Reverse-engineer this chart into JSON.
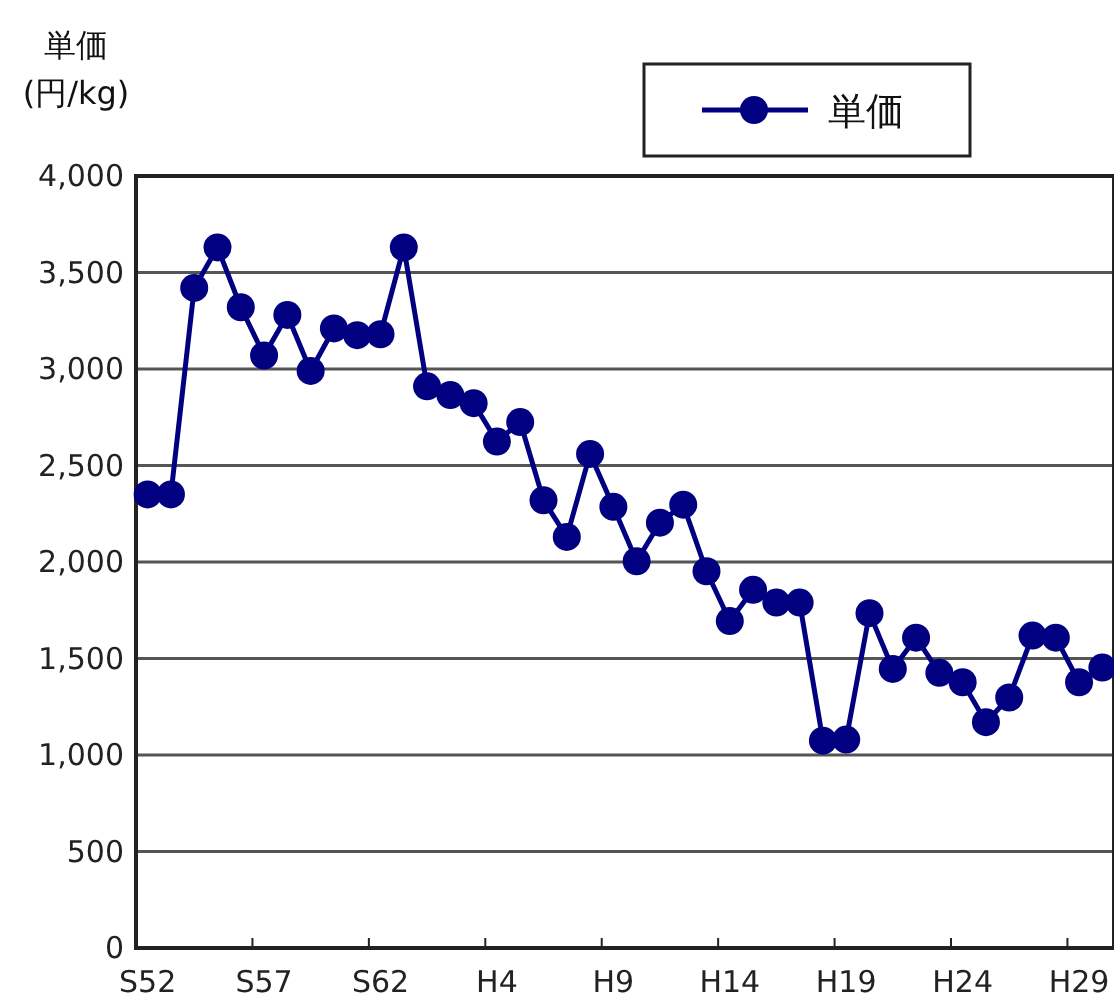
{
  "chart_data": {
    "type": "line",
    "ylabel": "単価 (円/kg)",
    "categories": [
      "S52",
      null,
      null,
      null,
      null,
      "S57",
      null,
      null,
      null,
      null,
      "S62",
      null,
      null,
      null,
      null,
      "H4",
      null,
      null,
      null,
      null,
      "H9",
      null,
      null,
      null,
      null,
      "H14",
      null,
      null,
      null,
      null,
      "H19",
      null,
      null,
      null,
      null,
      "H24",
      null,
      null,
      null,
      null,
      "H29",
      null
    ],
    "series": [
      {
        "name": "単価",
        "color": "#000080",
        "values": [
          2350,
          2350,
          3420,
          3630,
          3320,
          3070,
          3280,
          2990,
          3210,
          3175,
          3180,
          3630,
          2910,
          2865,
          2823,
          2624,
          2725,
          2320,
          2130,
          2560,
          2286,
          2004,
          2204,
          2297,
          1952,
          1694,
          1856,
          1790,
          1790,
          1074,
          1080,
          1735,
          1446,
          1608,
          1426,
          1377,
          1170,
          1298,
          1619,
          1608,
          1377,
          1453
        ]
      }
    ],
    "ylim": [
      0,
      4000
    ],
    "yticks": [
      0,
      500,
      {
        "value": 1000,
        "label": "1,000"
      },
      {
        "value": 1500,
        "label": "1,500"
      },
      {
        "value": 2000,
        "label": "2,000"
      },
      {
        "value": 2500,
        "label": "2,500"
      },
      {
        "value": 3000,
        "label": "3,000"
      },
      {
        "value": 3500,
        "label": "3,500"
      },
      {
        "value": 4000,
        "label": "4,000"
      }
    ],
    "grid": "y",
    "legend": "top",
    "marker": "circle",
    "line_style": "solid"
  }
}
